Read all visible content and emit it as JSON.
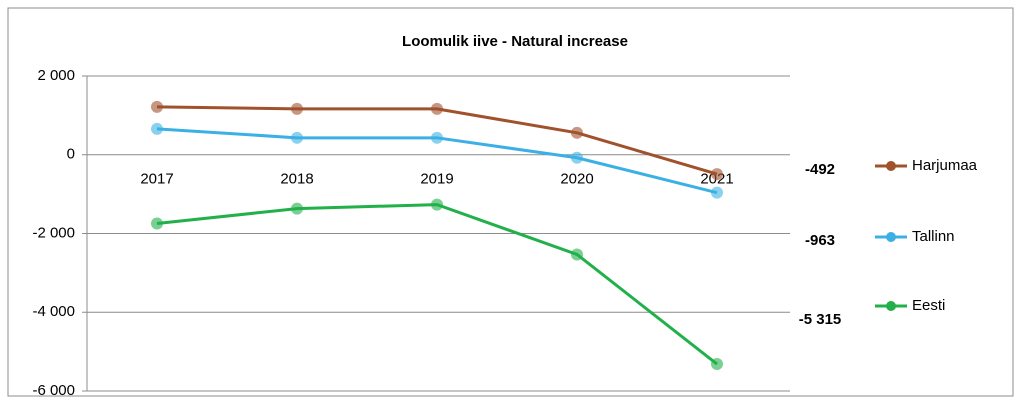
{
  "chart_data": {
    "type": "line",
    "title": "Loomulik iive - Natural increase",
    "categories": [
      "2017",
      "2018",
      "2019",
      "2020",
      "2021"
    ],
    "series": [
      {
        "name": "Harjumaa",
        "color": "#a0522d",
        "values": [
          1215,
          1165,
          1165,
          557,
          -492
        ],
        "value_labels": [
          null,
          null,
          null,
          null,
          "-492"
        ]
      },
      {
        "name": "Tallinn",
        "color": "#3cb0e4",
        "values": [
          658,
          430,
          430,
          -76,
          -963
        ],
        "value_labels": [
          null,
          null,
          null,
          null,
          "-963"
        ]
      },
      {
        "name": "Eesti",
        "color": "#22b04a",
        "values": [
          -1747,
          -1367,
          -1266,
          -2532,
          -5315
        ],
        "value_labels": [
          null,
          null,
          null,
          null,
          "-5 315"
        ]
      }
    ],
    "ylim": [
      -6000,
      2000
    ],
    "yticks": [
      {
        "value": 2000,
        "label": "2 000"
      },
      0,
      {
        "value": -2000,
        "label": "-2 000"
      },
      {
        "value": -4000,
        "label": "-4 000"
      },
      {
        "value": -6000,
        "label": "-6 000"
      }
    ],
    "grid": true,
    "legend": "right"
  }
}
